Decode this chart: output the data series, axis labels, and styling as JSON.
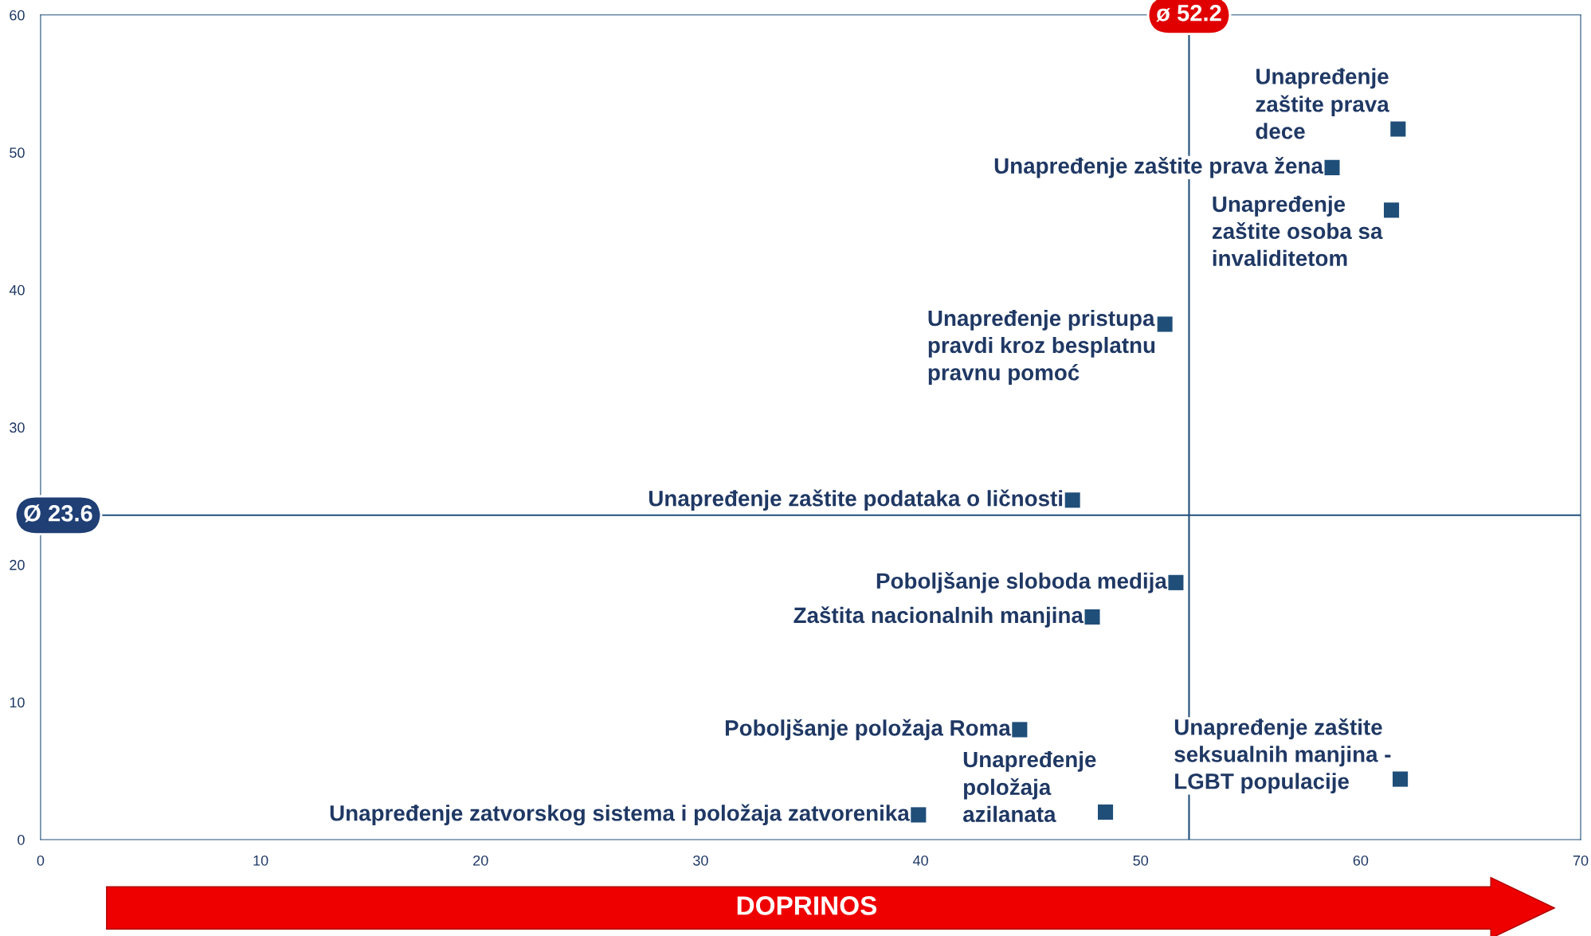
{
  "chart_data": {
    "type": "scatter",
    "xlabel": "DOPRINOS",
    "series": [
      {
        "color": "#1f4e79",
        "x": [
          61.7,
          58.7,
          61.4,
          51.1,
          46.9,
          51.6,
          47.8,
          44.5,
          48.4,
          39.9,
          61.8
        ],
        "values": [
          51.7,
          48.9,
          45.8,
          37.5,
          24.7,
          18.7,
          16.2,
          8.0,
          2.0,
          1.8,
          4.4
        ]
      }
    ],
    "marker": "square",
    "annotations": [
      {
        "text": "Unapređenje\nzaštite prava\ndece",
        "x": 61.7,
        "y": 51.7
      },
      {
        "text": "Unapređenje zaštite prava žena",
        "x": 58.7,
        "y": 48.9
      },
      {
        "text": "Unapređenje\nzaštite osoba sa\ninvaliditetom",
        "x": 61.4,
        "y": 45.8
      },
      {
        "text": "Unapređenje pristupa\npravdi kroz besplatnu\npravnu pomoć",
        "x": 51.1,
        "y": 37.5
      },
      {
        "text": "Unapređenje zaštite podataka o ličnosti",
        "x": 46.9,
        "y": 24.7
      },
      {
        "text": "Poboljšanje sloboda medija",
        "x": 51.6,
        "y": 18.7
      },
      {
        "text": "Zaštita nacionalnih manjina",
        "x": 47.8,
        "y": 16.2
      },
      {
        "text": "Poboljšanje položaja Roma",
        "x": 44.5,
        "y": 8.0
      },
      {
        "text": "Unapređenje\npoložaja\nazilanata",
        "x": 48.4,
        "y": 2.0
      },
      {
        "text": "Unapređenje zatvorskog sistema i položaja zatvorenika",
        "x": 39.9,
        "y": 1.8
      },
      {
        "text": "Unapređenje zaštite\nseksualnih manjina -\nLGBT populacije",
        "x": 61.8,
        "y": 4.4
      }
    ],
    "ref_lines": [
      {
        "axis": "x",
        "value": 52.2,
        "label": "ø 52.2",
        "color": "#1f4e79"
      },
      {
        "axis": "y",
        "value": 23.6,
        "label": "Ø 23.6",
        "color": "#1f4e79"
      }
    ],
    "xlim": [
      0,
      70
    ],
    "ylim": [
      0,
      60
    ],
    "xticks": [
      0,
      10,
      20,
      30,
      40,
      50,
      60,
      70
    ],
    "yticks": [
      0,
      10,
      20,
      30,
      40,
      50,
      60
    ],
    "grid": false
  }
}
